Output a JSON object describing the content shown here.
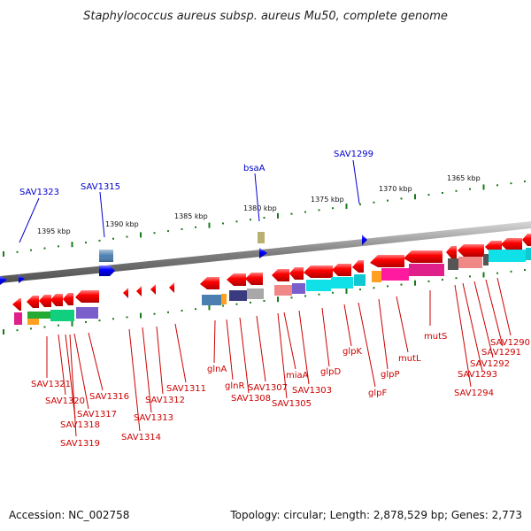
{
  "title": "Staphylococcus aureus subsp. aureus Mu50, complete genome",
  "footer": {
    "accession": "Accession: NC_002758",
    "topology": "Topology: circular; Length: 2,878,529 bp; Genes: 2,773"
  },
  "ruler": [
    "1395 kbp",
    "1390 kbp",
    "1385 kbp",
    "1380 kbp",
    "1375 kbp",
    "1370 kbp",
    "1365 kbp"
  ],
  "colors": {
    "forward_gene": "#0000ff",
    "reverse_gene": "#ff0000",
    "backbone": "#808080",
    "label_top": "#0000cc",
    "label_bottom": "#cc0000",
    "dots": "#1a7a1a"
  },
  "labels_top": [
    "SAV1323",
    "SAV1315",
    "bsaA",
    "SAV1299"
  ],
  "labels_bottom": [
    "SAV1321",
    "SAV1320",
    "SAV1318",
    "SAV1319",
    "SAV1317",
    "SAV1316",
    "SAV1314",
    "SAV1313",
    "SAV1312",
    "SAV1311",
    "glnA",
    "glnR",
    "SAV1308",
    "SAV1307",
    "SAV1305",
    "miaA",
    "SAV1303",
    "glpD",
    "glpK",
    "glpF",
    "glpP",
    "mutL",
    "mutS",
    "SAV1294",
    "SAV1293",
    "SAV1292",
    "SAV1291",
    "SAV1290"
  ]
}
